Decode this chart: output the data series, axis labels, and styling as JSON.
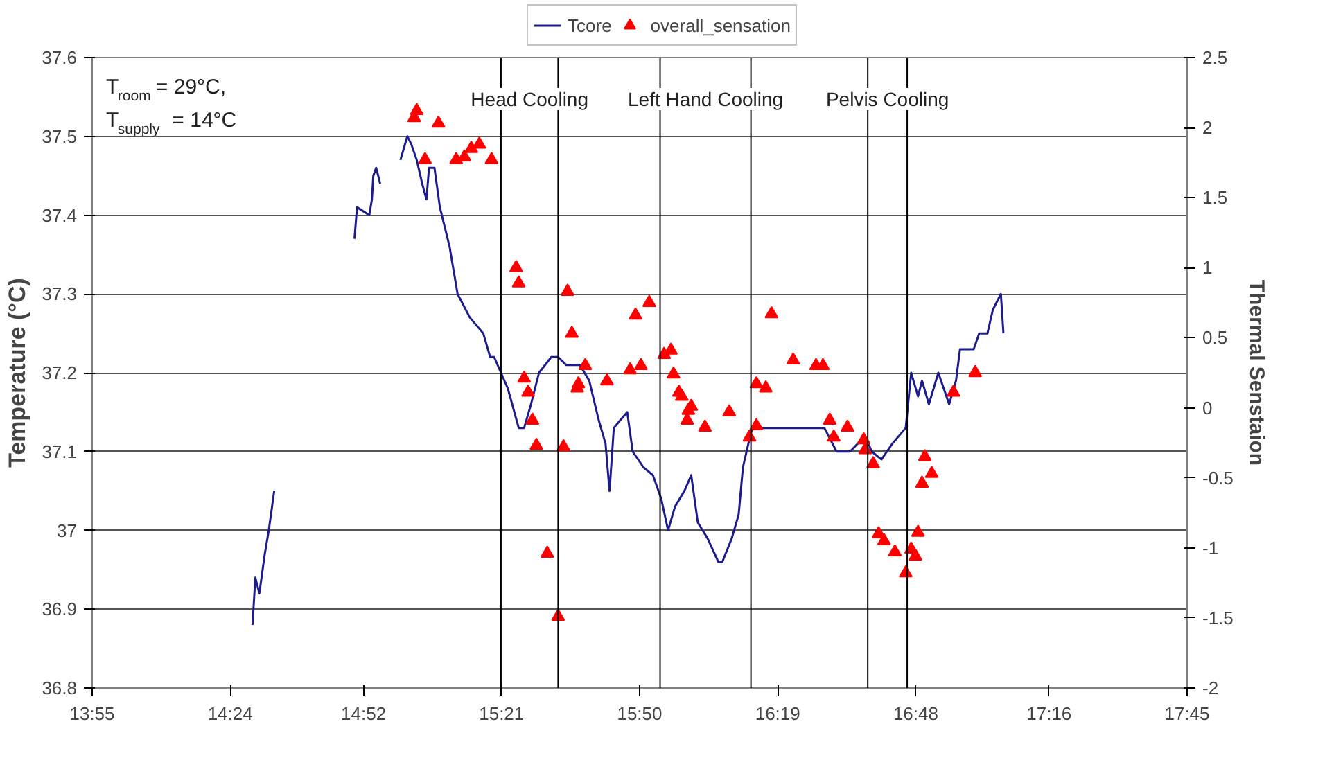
{
  "chart_data": {
    "type": "line",
    "ylabel": "Temperature (°C)",
    "y2label": "Thermal Senstaion",
    "xlim": [
      13.9167,
      17.75
    ],
    "xticks": [
      {
        "value": 13.9167,
        "label": "13:55"
      },
      {
        "value": 14.4,
        "label": "14:24"
      },
      {
        "value": 14.8667,
        "label": "14:52"
      },
      {
        "value": 15.35,
        "label": "15:21"
      },
      {
        "value": 15.8333,
        "label": "15:50"
      },
      {
        "value": 16.3167,
        "label": "16:19"
      },
      {
        "value": 16.8,
        "label": "16:48"
      },
      {
        "value": 17.2667,
        "label": "17:16"
      },
      {
        "value": 17.75,
        "label": "17:45"
      }
    ],
    "ylim": [
      36.8,
      37.6
    ],
    "yticks": [
      {
        "value": 36.8,
        "label": "36.8"
      },
      {
        "value": 36.9,
        "label": "36.9"
      },
      {
        "value": 37.0,
        "label": "37"
      },
      {
        "value": 37.1,
        "label": "37.1"
      },
      {
        "value": 37.2,
        "label": "37.2"
      },
      {
        "value": 37.3,
        "label": "37.3"
      },
      {
        "value": 37.4,
        "label": "37.4"
      },
      {
        "value": 37.5,
        "label": "37.5"
      },
      {
        "value": 37.6,
        "label": "37.6"
      }
    ],
    "y2lim": [
      -2,
      2.5
    ],
    "y2ticks": [
      -2,
      -1.5,
      -1,
      -0.5,
      0,
      0.5,
      1,
      1.5,
      2,
      2.5
    ],
    "grid": "y",
    "legend": "top",
    "series": [
      {
        "name": "Tcore",
        "color": "#1c1c8e",
        "line_style": "solid",
        "x": [
          14.478,
          14.488,
          14.502,
          14.521,
          14.535,
          14.554,
          14.56,
          14.835,
          14.844,
          14.887,
          14.896,
          14.901,
          14.911,
          14.925,
          14.93,
          14.996,
          15.02,
          15.034,
          15.053,
          15.072,
          15.087,
          15.096,
          15.115,
          15.134,
          15.168,
          15.196,
          15.239,
          15.286,
          15.31,
          15.324,
          15.348,
          15.372,
          15.41,
          15.429,
          15.453,
          15.481,
          15.524,
          15.548,
          15.576,
          15.624,
          15.657,
          15.69,
          15.714,
          15.728,
          15.743,
          15.766,
          15.79,
          15.809,
          15.847,
          15.88,
          15.909,
          15.933,
          15.957,
          15.99,
          16.014,
          16.037,
          16.071,
          16.109,
          16.123,
          16.156,
          16.18,
          16.195,
          16.214,
          16.228,
          16.275,
          16.404,
          16.48,
          16.523,
          16.57,
          16.623,
          16.646,
          16.68,
          16.718,
          16.765,
          16.784,
          16.808,
          16.822,
          16.846,
          16.879,
          16.917,
          16.941,
          16.955,
          17.003,
          17.022,
          17.051,
          17.07,
          17.098,
          17.107
        ],
        "values": [
          36.88,
          36.94,
          36.92,
          36.97,
          37.0,
          37.05,
          null,
          37.37,
          37.41,
          37.4,
          37.42,
          37.45,
          37.46,
          37.44,
          null,
          37.47,
          37.5,
          37.49,
          37.47,
          37.44,
          37.42,
          37.46,
          37.46,
          37.41,
          37.36,
          37.3,
          37.27,
          37.25,
          37.22,
          37.22,
          37.2,
          37.18,
          37.13,
          37.13,
          37.16,
          37.2,
          37.22,
          37.22,
          37.21,
          37.21,
          37.19,
          37.14,
          37.11,
          37.05,
          37.13,
          37.14,
          37.15,
          37.1,
          37.08,
          37.07,
          37.04,
          37.0,
          37.03,
          37.05,
          37.07,
          37.01,
          36.99,
          36.96,
          36.96,
          36.99,
          37.02,
          37.08,
          37.11,
          37.13,
          37.13,
          37.13,
          37.13,
          37.1,
          37.1,
          37.12,
          37.1,
          37.09,
          37.11,
          37.13,
          37.2,
          37.17,
          37.19,
          37.16,
          37.2,
          37.16,
          37.19,
          37.23,
          37.23,
          37.25,
          37.25,
          37.28,
          37.3,
          37.25
        ]
      },
      {
        "name": "overall_sensation",
        "type": "scatter",
        "axis": "y2",
        "marker": "triangle",
        "color": "#ff0000",
        "x": [
          15.044,
          15.053,
          15.129,
          15.082,
          15.191,
          15.22,
          15.244,
          15.272,
          15.315,
          15.401,
          15.41,
          15.429,
          15.443,
          15.458,
          15.472,
          15.51,
          15.548,
          15.567,
          15.581,
          15.596,
          15.615,
          15.619,
          15.643,
          15.719,
          15.8,
          15.819,
          15.838,
          15.867,
          15.919,
          15.943,
          15.952,
          15.971,
          15.981,
          16.0,
          16.004,
          16.014,
          16.062,
          16.147,
          16.218,
          16.242,
          16.242,
          16.275,
          16.295,
          16.371,
          16.451,
          16.475,
          16.499,
          16.513,
          16.561,
          16.618,
          16.623,
          16.651,
          16.67,
          16.689,
          16.727,
          16.765,
          16.784,
          16.799,
          16.808,
          16.822,
          16.832,
          16.856,
          16.932,
          17.008
        ],
        "values": [
          2.07,
          2.12,
          2.03,
          1.77,
          1.77,
          1.79,
          1.85,
          1.88,
          1.77,
          1.0,
          0.89,
          0.21,
          0.11,
          -0.09,
          -0.27,
          -1.04,
          -1.49,
          -0.28,
          0.83,
          0.53,
          0.14,
          0.17,
          0.3,
          0.19,
          0.27,
          0.66,
          0.3,
          0.75,
          0.38,
          0.41,
          0.24,
          0.11,
          0.08,
          -0.09,
          -0.02,
          0.01,
          -0.14,
          -0.03,
          -0.21,
          -0.13,
          0.17,
          0.14,
          0.67,
          0.34,
          0.3,
          0.3,
          -0.09,
          -0.21,
          -0.14,
          -0.23,
          -0.3,
          -0.4,
          -0.9,
          -0.95,
          -1.03,
          -1.18,
          -1.01,
          -1.06,
          -0.89,
          -0.54,
          -0.35,
          -0.47,
          0.11,
          0.25
        ]
      }
    ],
    "ref_lines": [
      {
        "axis": "x",
        "value": 15.348,
        "color": "#000000"
      },
      {
        "axis": "x",
        "value": 15.548,
        "color": "#000000"
      },
      {
        "axis": "x",
        "value": 15.905,
        "color": "#000000"
      },
      {
        "axis": "x",
        "value": 16.223,
        "color": "#000000"
      },
      {
        "axis": "x",
        "value": 16.632,
        "color": "#000000"
      },
      {
        "axis": "x",
        "value": 16.77,
        "color": "#000000"
      }
    ],
    "annotations": [
      "T$_{room}$ = 29°C,",
      "T$_{supply}$ = 14°C",
      "Head Cooling",
      "Left Hand Cooling",
      "Pelvis Cooling"
    ]
  }
}
